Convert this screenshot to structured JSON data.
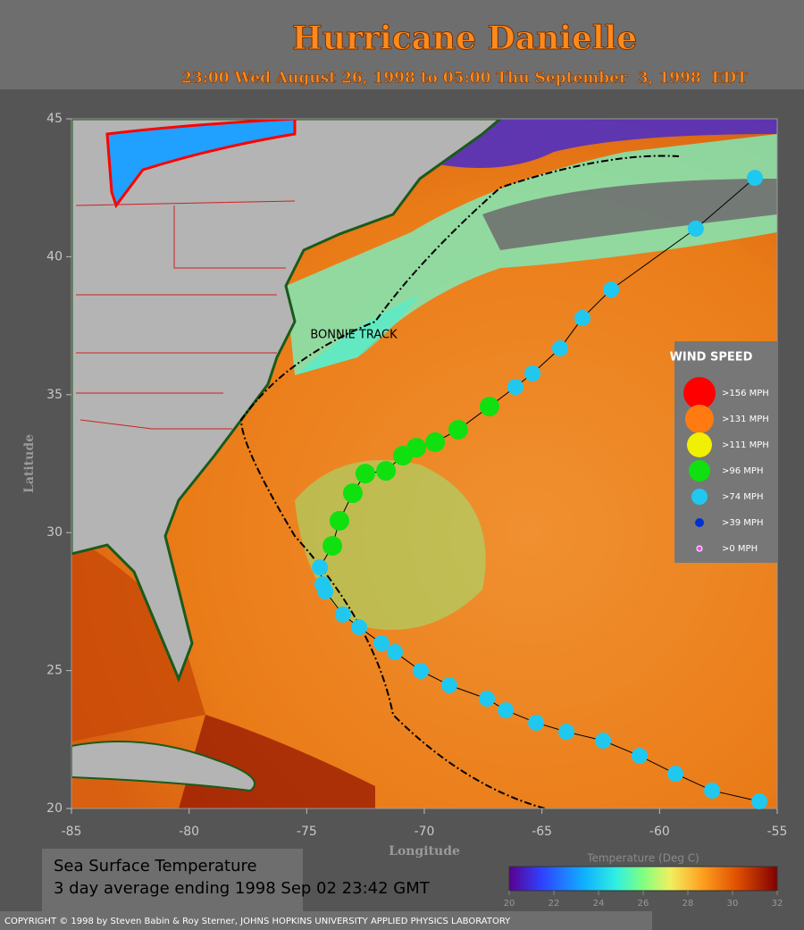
{
  "header": {
    "title": "Hurricane Danielle",
    "subtitle": "23:00 Wed August 26, 1998 to 05:00 Thu September  3, 1998  EDT"
  },
  "map": {
    "xlabel": "Longitude",
    "ylabel": "Latitude",
    "xlim": [
      -85,
      -55
    ],
    "ylim": [
      20,
      45
    ],
    "xticks": [
      -85,
      -80,
      -75,
      -70,
      -65,
      -60,
      -55
    ],
    "yticks": [
      20,
      25,
      30,
      35,
      40,
      45
    ],
    "annotation": "BONNIE TRACK"
  },
  "track": {
    "lon": [
      -55.76,
      -57.77,
      -59.33,
      -60.85,
      -62.4,
      -63.96,
      -65.25,
      -66.54,
      -67.34,
      -68.94,
      -70.15,
      -71.25,
      -71.82,
      -72.77,
      -73.46,
      -74.21,
      -74.33,
      -74.44,
      -73.91,
      -73.61,
      -73.04,
      -72.51,
      -71.63,
      -70.91,
      -70.34,
      -69.54,
      -68.56,
      -67.23,
      -66.13,
      -65.4,
      -64.23,
      -63.28,
      -62.06,
      -58.46,
      -55.95
    ],
    "lat": [
      20.26,
      20.65,
      21.26,
      21.91,
      22.46,
      22.78,
      23.11,
      23.56,
      23.98,
      24.47,
      24.99,
      25.67,
      25.99,
      26.57,
      27.03,
      27.87,
      28.13,
      28.74,
      29.52,
      30.43,
      31.43,
      32.14,
      32.24,
      32.79,
      33.08,
      33.28,
      33.73,
      34.57,
      35.28,
      35.77,
      36.68,
      37.78,
      38.81,
      41.02,
      42.86
    ],
    "wind": [
      80,
      80,
      80,
      80,
      80,
      80,
      80,
      80,
      80,
      80,
      80,
      80,
      80,
      80,
      80,
      80,
      80,
      80,
      100,
      100,
      100,
      100,
      100,
      100,
      100,
      100,
      100,
      100,
      80,
      80,
      80,
      80,
      80,
      80,
      80
    ]
  },
  "legend": {
    "title": "WIND SPEED",
    "items": [
      {
        "min": 156,
        "label": ">156 MPH",
        "color": "#ff0000"
      },
      {
        "min": 131,
        "label": ">131 MPH",
        "color": "#ff7a10"
      },
      {
        "min": 111,
        "label": ">111 MPH",
        "color": "#f0f000"
      },
      {
        "min": 96,
        "label": ">96 MPH",
        "color": "#10e010"
      },
      {
        "min": 74,
        "label": ">74 MPH",
        "color": "#20c8f0"
      },
      {
        "min": 39,
        "label": ">39 MPH",
        "color": "#0030d0"
      },
      {
        "min": 0,
        "label": ">0 MPH",
        "color": "#ff40ff"
      }
    ]
  },
  "colorbar": {
    "title": "Temperature (Deg C)",
    "lim": [
      20,
      32
    ],
    "ticks": [
      20,
      22,
      24,
      26,
      28,
      30,
      32
    ]
  },
  "info": {
    "line1": "Sea Surface Temperature",
    "line2": "3 day average ending 1998 Sep 02 23:42 GMT"
  },
  "footer": {
    "copyright": "COPYRIGHT © 1998 by Steven Babin & Roy Sterner, JOHNS HOPKINS UNIVERSITY APPLIED PHYSICS LABORATORY"
  }
}
